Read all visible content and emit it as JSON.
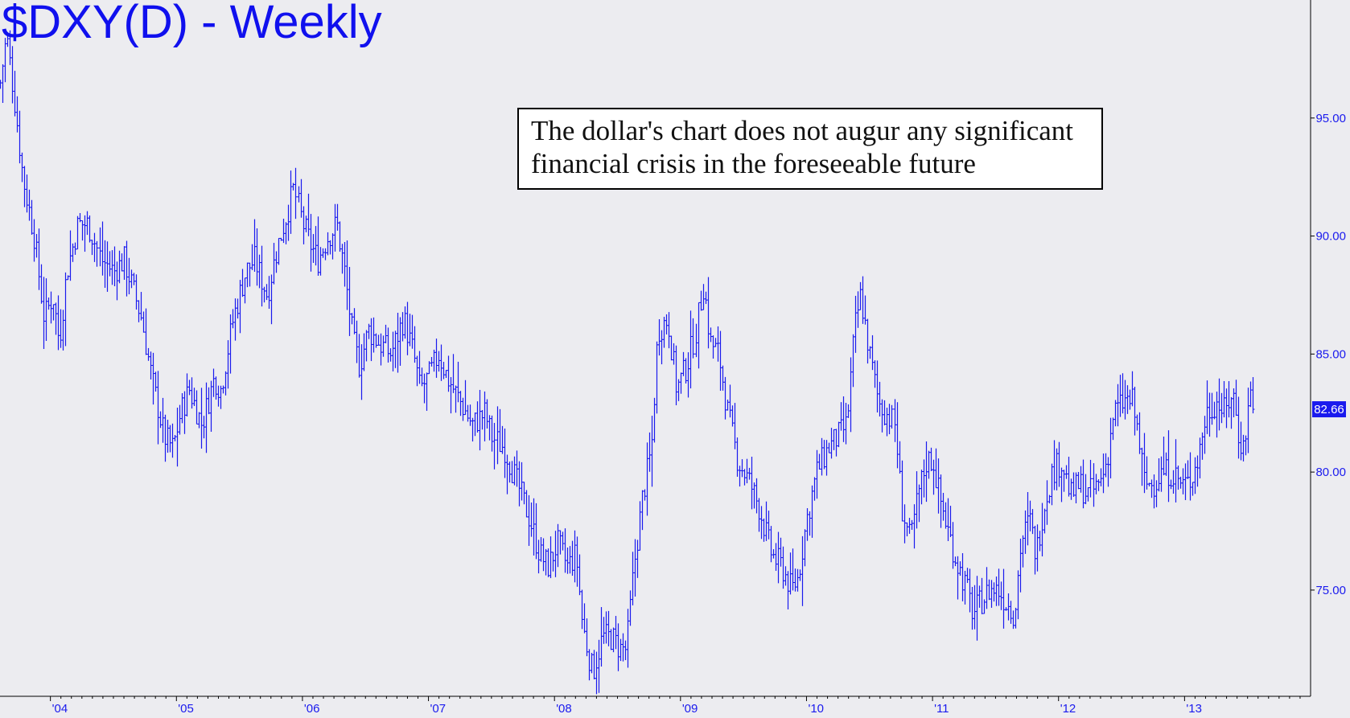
{
  "chart_data": {
    "type": "ohlc",
    "title": "$DXY(D) - Weekly",
    "annotation": [
      "The dollar's chart does not augur any significant",
      "financial crisis in the foreseeable future"
    ],
    "last_price": "82.66",
    "ylim": [
      70.5,
      100
    ],
    "xlim": [
      2003.6,
      2014.0
    ],
    "y_ticks": [
      "75.00",
      "80.00",
      "85.00",
      "90.00",
      "95.00"
    ],
    "x_ticks": [
      {
        "label": "'04",
        "value": 2004.0
      },
      {
        "label": "'05",
        "value": 2005.0
      },
      {
        "label": "'06",
        "value": 2006.0
      },
      {
        "label": "'07",
        "value": 2007.0
      },
      {
        "label": "'08",
        "value": 2008.0
      },
      {
        "label": "'09",
        "value": 2009.0
      },
      {
        "label": "'10",
        "value": 2010.0
      },
      {
        "label": "'11",
        "value": 2011.0
      },
      {
        "label": "'12",
        "value": 2012.0
      },
      {
        "label": "'13",
        "value": 2013.0
      }
    ],
    "price_path": [
      [
        2003.6,
        96.5
      ],
      [
        2003.65,
        98.5
      ],
      [
        2003.72,
        95.5
      ],
      [
        2003.78,
        92.5
      ],
      [
        2003.87,
        90.0
      ],
      [
        2003.95,
        86.5
      ],
      [
        2004.02,
        87.5
      ],
      [
        2004.07,
        85.5
      ],
      [
        2004.13,
        88.5
      ],
      [
        2004.22,
        90.5
      ],
      [
        2004.3,
        90.5
      ],
      [
        2004.4,
        89.0
      ],
      [
        2004.5,
        88.5
      ],
      [
        2004.58,
        89.0
      ],
      [
        2004.72,
        86.5
      ],
      [
        2004.8,
        84.0
      ],
      [
        2004.9,
        81.5
      ],
      [
        2004.97,
        81.0
      ],
      [
        2005.03,
        82.5
      ],
      [
        2005.1,
        83.5
      ],
      [
        2005.2,
        82.0
      ],
      [
        2005.3,
        84.0
      ],
      [
        2005.35,
        83.5
      ],
      [
        2005.45,
        86.5
      ],
      [
        2005.55,
        88.5
      ],
      [
        2005.62,
        89.0
      ],
      [
        2005.72,
        87.5
      ],
      [
        2005.8,
        89.5
      ],
      [
        2005.88,
        91.0
      ],
      [
        2005.93,
        92.0
      ],
      [
        2006.0,
        90.5
      ],
      [
        2006.07,
        89.5
      ],
      [
        2006.12,
        89.0
      ],
      [
        2006.2,
        90.0
      ],
      [
        2006.27,
        90.5
      ],
      [
        2006.33,
        88.5
      ],
      [
        2006.4,
        85.5
      ],
      [
        2006.45,
        84.5
      ],
      [
        2006.52,
        86.0
      ],
      [
        2006.6,
        85.5
      ],
      [
        2006.7,
        85.0
      ],
      [
        2006.8,
        86.5
      ],
      [
        2006.88,
        85.0
      ],
      [
        2006.93,
        83.5
      ],
      [
        2007.0,
        84.0
      ],
      [
        2007.08,
        85.0
      ],
      [
        2007.15,
        84.0
      ],
      [
        2007.25,
        83.0
      ],
      [
        2007.35,
        82.0
      ],
      [
        2007.45,
        82.5
      ],
      [
        2007.5,
        81.5
      ],
      [
        2007.6,
        81.0
      ],
      [
        2007.7,
        79.5
      ],
      [
        2007.8,
        78.0
      ],
      [
        2007.88,
        76.5
      ],
      [
        2007.95,
        76.0
      ],
      [
        2008.02,
        77.0
      ],
      [
        2008.1,
        76.0
      ],
      [
        2008.17,
        76.5
      ],
      [
        2008.22,
        73.5
      ],
      [
        2008.3,
        71.5
      ],
      [
        2008.38,
        73.0
      ],
      [
        2008.45,
        73.0
      ],
      [
        2008.52,
        72.5
      ],
      [
        2008.57,
        72.5
      ],
      [
        2008.63,
        76.0
      ],
      [
        2008.7,
        79.0
      ],
      [
        2008.77,
        81.0
      ],
      [
        2008.82,
        86.0
      ],
      [
        2008.9,
        86.5
      ],
      [
        2008.97,
        83.5
      ],
      [
        2009.05,
        84.5
      ],
      [
        2009.12,
        86.0
      ],
      [
        2009.18,
        88.0
      ],
      [
        2009.23,
        85.5
      ],
      [
        2009.3,
        85.0
      ],
      [
        2009.37,
        82.5
      ],
      [
        2009.45,
        80.5
      ],
      [
        2009.55,
        79.5
      ],
      [
        2009.62,
        78.5
      ],
      [
        2009.72,
        76.5
      ],
      [
        2009.8,
        76.0
      ],
      [
        2009.88,
        75.0
      ],
      [
        2009.93,
        75.5
      ],
      [
        2010.0,
        78.0
      ],
      [
        2010.08,
        80.0
      ],
      [
        2010.17,
        81.0
      ],
      [
        2010.25,
        81.5
      ],
      [
        2010.32,
        82.0
      ],
      [
        2010.38,
        86.0
      ],
      [
        2010.43,
        87.5
      ],
      [
        2010.5,
        85.0
      ],
      [
        2010.57,
        83.0
      ],
      [
        2010.63,
        82.5
      ],
      [
        2010.7,
        82.0
      ],
      [
        2010.75,
        78.5
      ],
      [
        2010.82,
        77.0
      ],
      [
        2010.88,
        79.0
      ],
      [
        2010.95,
        80.5
      ],
      [
        2011.0,
        80.5
      ],
      [
        2011.05,
        79.0
      ],
      [
        2011.12,
        77.5
      ],
      [
        2011.2,
        76.0
      ],
      [
        2011.27,
        75.0
      ],
      [
        2011.32,
        74.0
      ],
      [
        2011.38,
        74.5
      ],
      [
        2011.45,
        75.0
      ],
      [
        2011.52,
        75.0
      ],
      [
        2011.58,
        74.5
      ],
      [
        2011.65,
        74.0
      ],
      [
        2011.7,
        77.0
      ],
      [
        2011.77,
        78.0
      ],
      [
        2011.82,
        76.5
      ],
      [
        2011.88,
        78.5
      ],
      [
        2011.95,
        80.0
      ],
      [
        2012.02,
        80.5
      ],
      [
        2012.1,
        79.0
      ],
      [
        2012.17,
        79.5
      ],
      [
        2012.23,
        79.0
      ],
      [
        2012.32,
        79.5
      ],
      [
        2012.38,
        80.5
      ],
      [
        2012.43,
        82.5
      ],
      [
        2012.52,
        83.0
      ],
      [
        2012.58,
        83.0
      ],
      [
        2012.63,
        81.5
      ],
      [
        2012.68,
        79.5
      ],
      [
        2012.75,
        79.5
      ],
      [
        2012.82,
        80.0
      ],
      [
        2012.9,
        80.0
      ],
      [
        2012.97,
        79.5
      ],
      [
        2013.03,
        79.5
      ],
      [
        2013.1,
        80.5
      ],
      [
        2013.17,
        82.5
      ],
      [
        2013.25,
        83.0
      ],
      [
        2013.32,
        82.5
      ],
      [
        2013.38,
        83.5
      ],
      [
        2013.43,
        81.5
      ],
      [
        2013.47,
        81.0
      ],
      [
        2013.52,
        83.5
      ],
      [
        2013.55,
        82.66
      ]
    ]
  },
  "colors": {
    "background": "#ececf0",
    "bars": "#1a1aee",
    "axis": "#000000",
    "price_label_bg": "#1a1aee",
    "price_label_text": "#ffffff"
  }
}
